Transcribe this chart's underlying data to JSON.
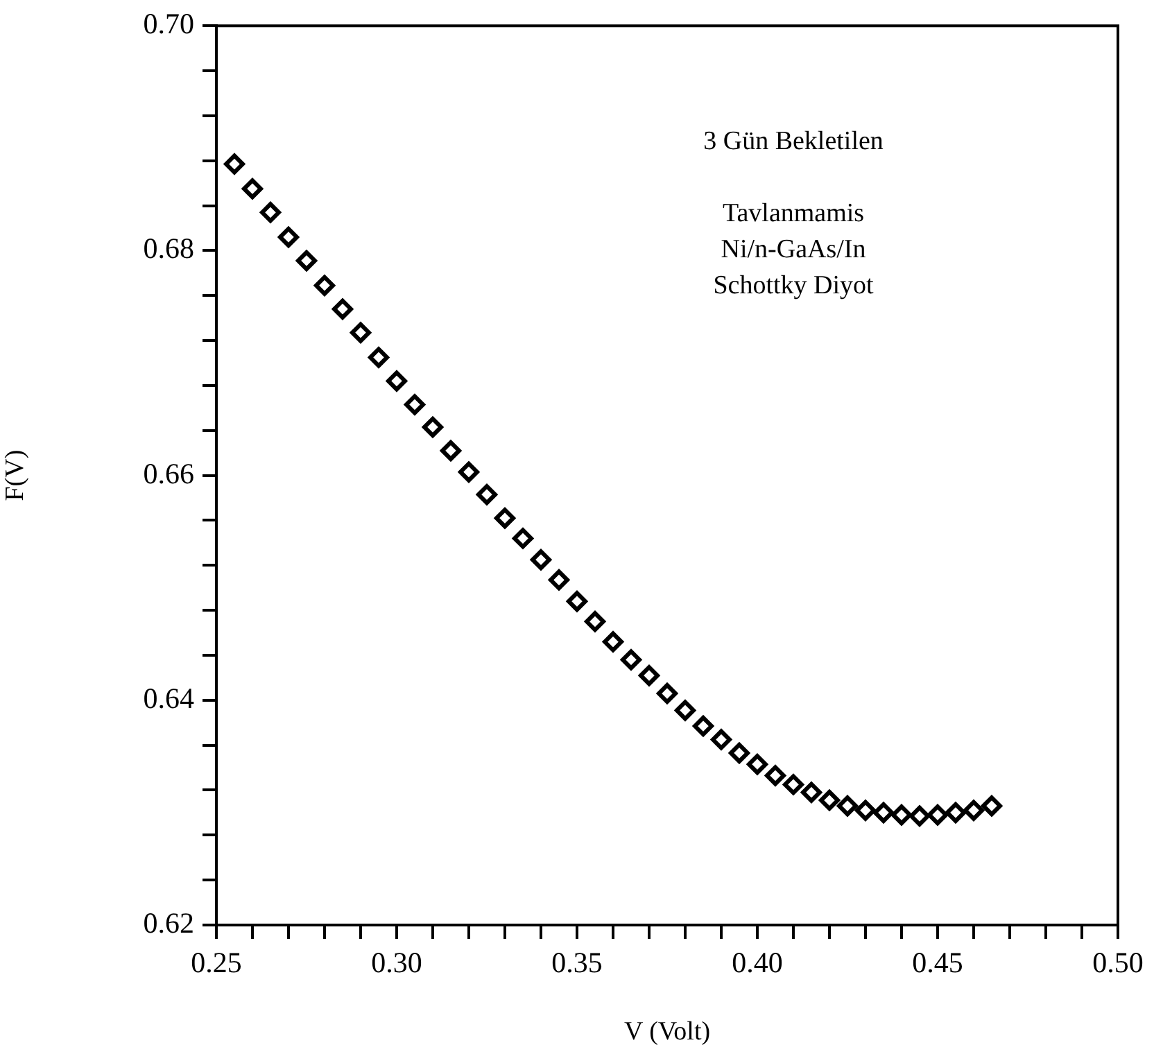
{
  "chart_data": {
    "type": "scatter",
    "xlabel": "V (Volt)",
    "ylabel": "F(V)",
    "annotations": [
      "3 Gün Bekletilen",
      "Tavlanmamis",
      "Ni/n-GaAs/In",
      "Schottky Diyot"
    ],
    "x": [
      0.255,
      0.26,
      0.265,
      0.27,
      0.275,
      0.28,
      0.285,
      0.29,
      0.295,
      0.3,
      0.305,
      0.31,
      0.315,
      0.32,
      0.325,
      0.33,
      0.335,
      0.34,
      0.345,
      0.35,
      0.355,
      0.36,
      0.365,
      0.37,
      0.375,
      0.38,
      0.385,
      0.39,
      0.395,
      0.4,
      0.405,
      0.41,
      0.415,
      0.42,
      0.425,
      0.43,
      0.435,
      0.44,
      0.445,
      0.45,
      0.455,
      0.46,
      0.465
    ],
    "series": [
      {
        "color": "#000000",
        "values": [
          0.6877,
          0.6855,
          0.6834,
          0.6812,
          0.6791,
          0.6769,
          0.6748,
          0.6727,
          0.6705,
          0.6684,
          0.6663,
          0.6643,
          0.6622,
          0.6603,
          0.6583,
          0.6562,
          0.6544,
          0.6525,
          0.6507,
          0.6488,
          0.647,
          0.6452,
          0.6436,
          0.6422,
          0.6406,
          0.6391,
          0.6377,
          0.6365,
          0.6353,
          0.6343,
          0.6333,
          0.6325,
          0.6318,
          0.6311,
          0.6306,
          0.6302,
          0.63,
          0.6298,
          0.6297,
          0.6298,
          0.63,
          0.6302,
          0.6306
        ]
      }
    ],
    "xlim": [
      0.25,
      0.5
    ],
    "xticks": [
      {
        "value": 0.25,
        "label": "0.25"
      },
      {
        "value": 0.26,
        "label": null
      },
      {
        "value": 0.27,
        "label": null
      },
      {
        "value": 0.28,
        "label": null
      },
      {
        "value": 0.29,
        "label": null
      },
      {
        "value": 0.3,
        "label": "0.30"
      },
      {
        "value": 0.31,
        "label": null
      },
      {
        "value": 0.32,
        "label": null
      },
      {
        "value": 0.33,
        "label": null
      },
      {
        "value": 0.34,
        "label": null
      },
      {
        "value": 0.35,
        "label": "0.35"
      },
      {
        "value": 0.36,
        "label": null
      },
      {
        "value": 0.37,
        "label": null
      },
      {
        "value": 0.38,
        "label": null
      },
      {
        "value": 0.39,
        "label": null
      },
      {
        "value": 0.4,
        "label": "0.40"
      },
      {
        "value": 0.41,
        "label": null
      },
      {
        "value": 0.42,
        "label": null
      },
      {
        "value": 0.43,
        "label": null
      },
      {
        "value": 0.44,
        "label": null
      },
      {
        "value": 0.45,
        "label": "0.45"
      },
      {
        "value": 0.46,
        "label": null
      },
      {
        "value": 0.47,
        "label": null
      },
      {
        "value": 0.48,
        "label": null
      },
      {
        "value": 0.49,
        "label": null
      },
      {
        "value": 0.5,
        "label": "0.50"
      }
    ],
    "ylim": [
      0.62,
      0.7
    ],
    "yticks": [
      0.62,
      {
        "value": 0.624,
        "label": null
      },
      {
        "value": 0.628,
        "label": null
      },
      {
        "value": 0.632,
        "label": null
      },
      {
        "value": 0.636,
        "label": null
      },
      0.64,
      {
        "value": 0.644,
        "label": null
      },
      {
        "value": 0.648,
        "label": null
      },
      {
        "value": 0.652,
        "label": null
      },
      {
        "value": 0.656,
        "label": null
      },
      0.66,
      {
        "value": 0.664,
        "label": null
      },
      {
        "value": 0.668,
        "label": null
      },
      {
        "value": 0.672,
        "label": null
      },
      {
        "value": 0.676,
        "label": null
      },
      0.68,
      {
        "value": 0.684,
        "label": null
      },
      {
        "value": 0.688,
        "label": null
      },
      {
        "value": 0.692,
        "label": null
      },
      {
        "value": 0.696,
        "label": null
      },
      {
        "value": 0.7,
        "label": "0.70"
      }
    ],
    "grid": false,
    "legend": false,
    "marker": "diamond"
  }
}
